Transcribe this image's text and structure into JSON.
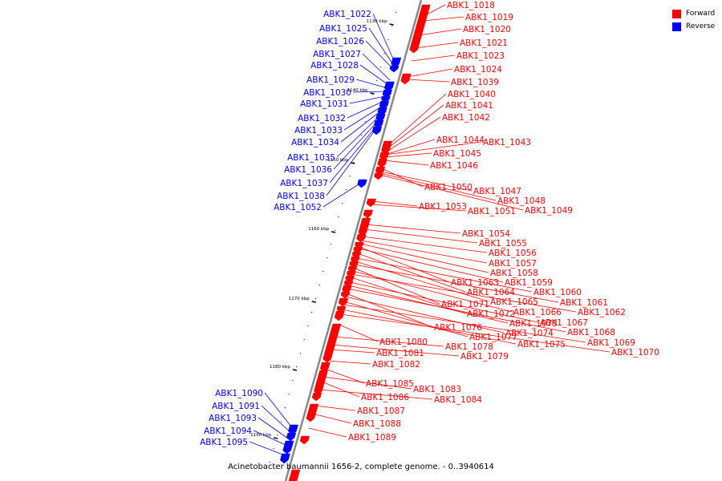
{
  "legend": {
    "forward": "Forward",
    "reverse": "Reverse"
  },
  "colors": {
    "forward": "#ff0000",
    "reverse": "#0000ff",
    "backbone": "#888888"
  },
  "caption": "Acinetobacter baumannii 1656-2, complete genome. - 0..3940614",
  "ruler": [
    "1130 kbp",
    "1140 kbp",
    "1150 kbp",
    "1160 kbp",
    "1170 kbp",
    "1180 kbp",
    "1190 kbp"
  ],
  "labels": {
    "forward": [
      "ABK1_1018",
      "ABK1_1019",
      "ABK1_1020",
      "ABK1_1021",
      "ABK1_1023",
      "ABK1_1024",
      "ABK1_1039",
      "ABK1_1040",
      "ABK1_1041",
      "ABK1_1042",
      "ABK1_1044",
      "ABK1_1043",
      "ABK1_1045",
      "ABK1_1046",
      "ABK1_1050",
      "ABK1_1047",
      "ABK1_1048",
      "ABK1_1049",
      "ABK1_1053",
      "ABK1_1051",
      "ABK1_1054",
      "ABK1_1055",
      "ABK1_1056",
      "ABK1_1057",
      "ABK1_1058",
      "ABK1_1063",
      "ABK1_1059",
      "ABK1_1064",
      "ABK1_1060",
      "ABK1_1065",
      "ABK1_1061",
      "ABK1_1071",
      "ABK1_1066",
      "ABK1_1062",
      "ABK1_1072",
      "ABK1_1067",
      "ABK1_1073",
      "ABK1_1068",
      "ABK1_1076",
      "ABK1_1074",
      "ABK1_1077",
      "ABK1_1069",
      "ABK1_1075",
      "ABK1_1070",
      "ABK1_1080",
      "ABK1_1078",
      "ABK1_1079",
      "ABK1_1081",
      "ABK1_1082",
      "ABK1_1085",
      "ABK1_1083",
      "ABK1_1086",
      "ABK1_1084",
      "ABK1_1087",
      "ABK1_1088",
      "ABK1_1089"
    ],
    "reverse": [
      "ABK1_1022",
      "ABK1_1025",
      "ABK1_1026",
      "ABK1_1027",
      "ABK1_1028",
      "ABK1_1029",
      "ABK1_1030",
      "ABK1_1031",
      "ABK1_1032",
      "ABK1_1033",
      "ABK1_1034",
      "ABK1_1035",
      "ABK1_1036",
      "ABK1_1037",
      "ABK1_1038",
      "ABK1_1052",
      "ABK1_1090",
      "ABK1_1091",
      "ABK1_1093",
      "ABK1_1094",
      "ABK1_1095"
    ]
  }
}
